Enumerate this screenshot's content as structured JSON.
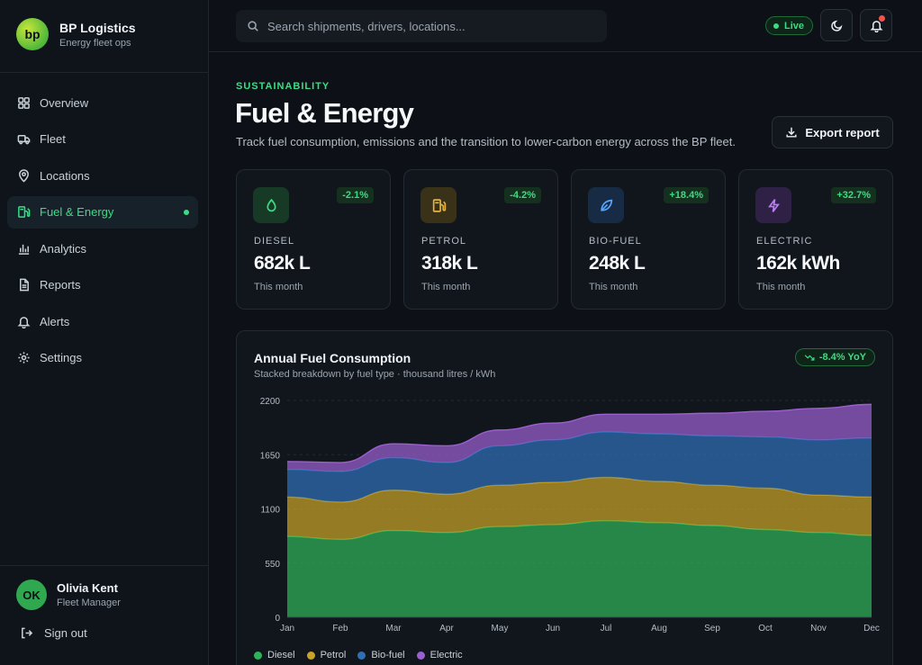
{
  "brand": {
    "logo_text": "bp",
    "name": "BP Logistics",
    "subtitle": "Energy fleet ops"
  },
  "sidebar": {
    "items": [
      {
        "label": "Overview",
        "icon": "grid-icon",
        "active": false
      },
      {
        "label": "Fleet",
        "icon": "truck-icon",
        "active": false
      },
      {
        "label": "Locations",
        "icon": "map-pin-icon",
        "active": false
      },
      {
        "label": "Fuel & Energy",
        "icon": "fuel-icon",
        "active": true
      },
      {
        "label": "Analytics",
        "icon": "bar-chart-icon",
        "active": false
      },
      {
        "label": "Reports",
        "icon": "document-icon",
        "active": false
      },
      {
        "label": "Alerts",
        "icon": "bell-icon",
        "active": false
      },
      {
        "label": "Settings",
        "icon": "gear-icon",
        "active": false
      }
    ]
  },
  "user": {
    "initials": "OK",
    "name": "Olivia Kent",
    "role": "Fleet Manager"
  },
  "signout_label": "Sign out",
  "topbar": {
    "search_placeholder": "Search shipments, drivers, locations...",
    "live_label": "Live"
  },
  "header": {
    "eyebrow": "SUSTAINABILITY",
    "title": "Fuel & Energy",
    "description": "Track fuel consumption, emissions and the transition to lower-carbon energy across the BP fleet.",
    "export_label": "Export report"
  },
  "cards": [
    {
      "label": "DIESEL",
      "value": "682k L",
      "sub": "This month",
      "change": "-2.1%",
      "icon": "droplet-icon",
      "color": "#3ddc84",
      "bg": "#173a26"
    },
    {
      "label": "PETROL",
      "value": "318k L",
      "sub": "This month",
      "change": "-4.2%",
      "icon": "fuel-pump-icon",
      "color": "#e3b341",
      "bg": "#3a3218"
    },
    {
      "label": "BIO-FUEL",
      "value": "248k L",
      "sub": "This month",
      "change": "+18.4%",
      "icon": "leaf-icon",
      "color": "#58a6ff",
      "bg": "#172b45"
    },
    {
      "label": "ELECTRIC",
      "value": "162k kWh",
      "sub": "This month",
      "change": "+32.7%",
      "icon": "lightning-icon",
      "color": "#bc7cf3",
      "bg": "#2e2145"
    }
  ],
  "chart_panel": {
    "title": "Annual Fuel Consumption",
    "subtitle": "Stacked breakdown by fuel type · thousand litres / kWh",
    "yoy_label": "-8.4% YoY"
  },
  "chart_data": {
    "type": "area",
    "stacked": true,
    "categories": [
      "Jan",
      "Feb",
      "Mar",
      "Apr",
      "May",
      "Jun",
      "Jul",
      "Aug",
      "Sep",
      "Oct",
      "Nov",
      "Dec"
    ],
    "y_ticks": [
      0,
      550,
      1100,
      1650,
      2200
    ],
    "ylim": [
      0,
      2200
    ],
    "grid": true,
    "legend_position": "bottom-left",
    "series": [
      {
        "name": "Diesel",
        "color": "#2fb35a",
        "values": [
          820,
          790,
          880,
          860,
          920,
          940,
          980,
          960,
          930,
          890,
          860,
          830
        ]
      },
      {
        "name": "Petrol",
        "color": "#c9a227",
        "values": [
          400,
          380,
          410,
          390,
          420,
          430,
          440,
          420,
          410,
          420,
          380,
          390
        ]
      },
      {
        "name": "Bio-fuel",
        "color": "#2f6fb5",
        "values": [
          280,
          310,
          330,
          320,
          400,
          430,
          460,
          480,
          500,
          520,
          560,
          600
        ]
      },
      {
        "name": "Electric",
        "color": "#9b5fd0",
        "values": [
          80,
          90,
          140,
          170,
          160,
          170,
          180,
          200,
          230,
          260,
          320,
          340
        ]
      }
    ]
  }
}
